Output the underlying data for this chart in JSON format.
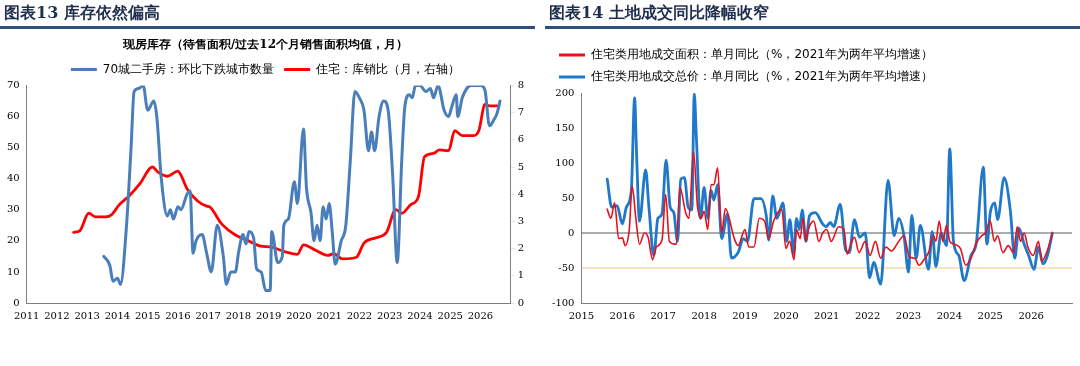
{
  "chart_data": [
    {
      "type": "line",
      "title": "图表13 库存依然偏高",
      "legend_title": "现房库存（待售面积/过去12个月销售面积均值，月）",
      "xlim": [
        2011,
        2027
      ],
      "xticks": [
        2011,
        2012,
        2013,
        2014,
        2015,
        2016,
        2017,
        2018,
        2019,
        2020,
        2021,
        2022,
        2023,
        2024,
        2025,
        2026
      ],
      "ylim": [
        0,
        70
      ],
      "yticks": [
        0,
        10,
        20,
        30,
        40,
        50,
        60,
        70
      ],
      "y2lim": [
        0,
        8
      ],
      "y2ticks": [
        0,
        1,
        2,
        3,
        4,
        5,
        6,
        7,
        8
      ],
      "grid": false,
      "legend": "top",
      "marker": "none",
      "line_style": "solid",
      "series": [
        {
          "name": "70城二手房：环比下跌城市数量",
          "color": "#4a7ebb",
          "x": [
            2013.55,
            2013.75,
            2013.85,
            2014.0,
            2014.1,
            2014.3,
            2014.45,
            2014.55,
            2014.7,
            2014.85,
            2015.0,
            2015.2,
            2015.3,
            2015.45,
            2015.65,
            2015.75,
            2015.85,
            2016.0,
            2016.1,
            2016.3,
            2016.4,
            2016.5,
            2016.6,
            2016.8,
            2016.95,
            2017.1,
            2017.3,
            2017.5,
            2017.6,
            2017.75,
            2017.9,
            2018.0,
            2018.15,
            2018.25,
            2018.35,
            2018.5,
            2018.6,
            2018.75,
            2018.9,
            2019.05,
            2019.1,
            2019.3,
            2019.45,
            2019.5,
            2019.65,
            2019.85,
            2019.95,
            2020.15,
            2020.25,
            2020.4,
            2020.5,
            2020.6,
            2020.7,
            2020.8,
            2020.9,
            2021.0,
            2021.1,
            2021.2,
            2021.4,
            2021.55,
            2021.7,
            2021.85,
            2022.0,
            2022.15,
            2022.3,
            2022.4,
            2022.5,
            2022.65,
            2022.8,
            2022.95,
            2023.1,
            2023.25,
            2023.4,
            2023.5,
            2023.65,
            2023.75,
            2023.85,
            2024.0,
            2024.2,
            2024.35,
            2024.45,
            2024.6,
            2024.8,
            2024.95,
            2025.05,
            2025.2,
            2025.25,
            2025.4,
            2025.55,
            2025.7,
            2026.0,
            2026.15,
            2026.3,
            2026.45,
            2026.55,
            2026.65
          ],
          "values": [
            15,
            12,
            7,
            8,
            6,
            25,
            50,
            68,
            69,
            70,
            62,
            65,
            60,
            40,
            28,
            30,
            27,
            31,
            30,
            35,
            36,
            16,
            20,
            22,
            16,
            10,
            25,
            15,
            6,
            10,
            10,
            16,
            22,
            19,
            23,
            21,
            11,
            10,
            4,
            4,
            23,
            13,
            15,
            25,
            27,
            39,
            32,
            56,
            37,
            29,
            20,
            25,
            20,
            31,
            27,
            32,
            23,
            12.5,
            20,
            25,
            46,
            68,
            66,
            62,
            49,
            55,
            49,
            60,
            65,
            62,
            41,
            13,
            46,
            63,
            67,
            66,
            70,
            70,
            68,
            69,
            66,
            70,
            62,
            60,
            63,
            67,
            60,
            66,
            69,
            70,
            70,
            68.5,
            57,
            59,
            61,
            65
          ]
        },
        {
          "name": "住宅：库销比（月，右轴）",
          "color": "#ff0000",
          "axis": "y2",
          "x": [
            2012.55,
            2012.75,
            2013.05,
            2013.27,
            2013.6,
            2013.8,
            2014.05,
            2014.4,
            2014.75,
            2015.15,
            2015.35,
            2015.65,
            2016.0,
            2016.1,
            2016.3,
            2016.65,
            2016.95,
            2017.05,
            2017.45,
            2017.9,
            2018.25,
            2018.7,
            2019.1,
            2019.55,
            2019.95,
            2020.15,
            2020.55,
            2020.95,
            2021.15,
            2021.45,
            2021.9,
            2022.15,
            2022.55,
            2022.9,
            2023.2,
            2023.4,
            2023.7,
            2023.95,
            2024.15,
            2024.45,
            2024.65,
            2024.95,
            2025.15,
            2025.4,
            2025.75,
            2025.95,
            2026.15,
            2026.3,
            2026.6
          ],
          "values": [
            2.6,
            2.65,
            3.3,
            3.17,
            3.17,
            3.24,
            3.6,
            3.95,
            4.4,
            5.0,
            4.8,
            4.66,
            4.85,
            4.7,
            4.2,
            3.75,
            3.56,
            3.53,
            2.9,
            2.5,
            2.33,
            2.1,
            2.05,
            1.88,
            1.79,
            2.14,
            1.94,
            1.75,
            1.81,
            1.62,
            1.68,
            2.2,
            2.4,
            2.6,
            3.43,
            3.3,
            3.62,
            3.9,
            5.37,
            5.5,
            5.63,
            5.6,
            6.34,
            6.15,
            6.15,
            6.34,
            7.3,
            7.25,
            7.25
          ]
        }
      ]
    },
    {
      "type": "line",
      "title": "图表14 土地成交同比降幅收窄",
      "xlim": [
        2015,
        2027
      ],
      "xticks": [
        2015,
        2016,
        2017,
        2018,
        2019,
        2020,
        2021,
        2022,
        2023,
        2024,
        2025,
        2026
      ],
      "ylim": [
        -100,
        200
      ],
      "yticks": [
        -100,
        -50,
        0,
        50,
        100,
        150,
        200
      ],
      "grid": false,
      "legend": "top left",
      "marker": "none",
      "line_style": "solid",
      "ref_lines": [
        {
          "axis": "y",
          "value": 0,
          "color": "#595959"
        },
        {
          "axis": "y",
          "value": -50,
          "color": "#f5c77e"
        }
      ],
      "series": [
        {
          "name": "住宅类用地成交面积：单月同比（%，2021年为两年平均增速）",
          "color": "#e8101d",
          "x": [
            2015.63,
            2015.72,
            2015.81,
            2015.91,
            2016.0,
            2016.07,
            2016.17,
            2016.24,
            2016.33,
            2016.42,
            2016.54,
            2016.63,
            2016.74,
            2016.83,
            2016.97,
            2017.06,
            2017.15,
            2017.32,
            2017.41,
            2017.55,
            2017.63,
            2017.74,
            2017.84,
            2017.93,
            2018.0,
            2018.09,
            2018.17,
            2018.24,
            2018.33,
            2018.43,
            2018.52,
            2018.74,
            2018.83,
            2019.0,
            2019.09,
            2019.22,
            2019.35,
            2019.48,
            2019.58,
            2019.7,
            2019.9,
            2020.0,
            2020.09,
            2020.2,
            2020.26,
            2020.35,
            2020.42,
            2020.49,
            2020.55,
            2020.68,
            2020.81,
            2020.9,
            2021.0,
            2021.11,
            2021.29,
            2021.42,
            2021.5,
            2021.59,
            2021.68,
            2021.79,
            2021.94,
            2022.06,
            2022.19,
            2022.32,
            2022.45,
            2022.58,
            2022.76,
            2022.89,
            2023.02,
            2023.15,
            2023.26,
            2023.38,
            2023.49,
            2023.61,
            2023.67,
            2023.75,
            2023.84,
            2023.93,
            2024.01,
            2024.12,
            2024.27,
            2024.4,
            2024.53,
            2024.66,
            2024.79,
            2024.88,
            2025.0,
            2025.1,
            2025.18,
            2025.31,
            2025.44,
            2025.57,
            2025.66,
            2025.74,
            2025.83,
            2025.92,
            2026.05,
            2026.18,
            2026.26,
            2026.38,
            2026.52
          ],
          "values": [
            34,
            21,
            43,
            -8,
            -7,
            -18,
            5,
            67,
            21,
            -16,
            0,
            -6,
            -38,
            -20,
            -10,
            55,
            -12,
            -16,
            65,
            29,
            21,
            116,
            37,
            21,
            31,
            5,
            69,
            69,
            93,
            0,
            35,
            -8,
            -18,
            5,
            -20,
            -20,
            21,
            17,
            -8,
            17,
            34,
            -22,
            -12,
            -38,
            5,
            -8,
            21,
            -12,
            5,
            17,
            -12,
            0,
            5,
            -12,
            9,
            5,
            -30,
            -16,
            -6,
            -28,
            -12,
            -32,
            -12,
            -36,
            -20,
            -26,
            -12,
            -4,
            -34,
            -36,
            -46,
            -38,
            -28,
            -4,
            -12,
            17,
            -12,
            11,
            -12,
            -16,
            -22,
            -46,
            -36,
            -14,
            -4,
            0,
            17,
            -12,
            -4,
            -28,
            -18,
            -28,
            9,
            -12,
            0,
            -20,
            -32,
            -12,
            -40,
            -28,
            0
          ]
        },
        {
          "name": "住宅类用地成交总价：单月同比（%，2021年为两年平均增速）",
          "color": "#1f78c8",
          "x": [
            2015.63,
            2015.74,
            2015.87,
            2016.0,
            2016.1,
            2016.22,
            2016.3,
            2016.35,
            2016.42,
            2016.57,
            2016.65,
            2016.77,
            2016.87,
            2016.97,
            2017.07,
            2017.17,
            2017.26,
            2017.35,
            2017.43,
            2017.52,
            2017.61,
            2017.7,
            2017.76,
            2017.81,
            2017.91,
            2018.0,
            2018.09,
            2018.17,
            2018.24,
            2018.33,
            2018.43,
            2018.57,
            2018.67,
            2018.83,
            2018.96,
            2019.06,
            2019.22,
            2019.39,
            2019.52,
            2019.58,
            2019.68,
            2019.78,
            2019.93,
            2020.02,
            2020.1,
            2020.19,
            2020.26,
            2020.33,
            2020.4,
            2020.49,
            2020.58,
            2020.72,
            2020.9,
            2020.98,
            2021.09,
            2021.17,
            2021.33,
            2021.46,
            2021.55,
            2021.68,
            2021.8,
            2021.94,
            2022.05,
            2022.15,
            2022.32,
            2022.5,
            2022.65,
            2022.76,
            2022.89,
            2023.0,
            2023.08,
            2023.19,
            2023.29,
            2023.49,
            2023.58,
            2023.67,
            2023.8,
            2023.93,
            2024.01,
            2024.1,
            2024.23,
            2024.36,
            2024.53,
            2024.66,
            2024.83,
            2024.92,
            2025.0,
            2025.11,
            2025.18,
            2025.34,
            2025.49,
            2025.6,
            2025.7,
            2025.83,
            2025.94,
            2026.07,
            2026.18,
            2026.29,
            2026.39,
            2026.52
          ],
          "values": [
            77,
            37,
            39,
            13,
            37,
            61,
            193,
            110,
            17,
            90,
            37,
            -32,
            21,
            27,
            104,
            37,
            29,
            -12,
            77,
            79,
            37,
            33,
            199,
            138,
            21,
            65,
            21,
            61,
            47,
            69,
            -8,
            27,
            -36,
            -28,
            -8,
            -12,
            49,
            49,
            25,
            -10,
            53,
            21,
            43,
            -12,
            19,
            -30,
            21,
            5,
            33,
            -12,
            25,
            29,
            13,
            9,
            15,
            9,
            41,
            -24,
            -28,
            19,
            -6,
            0,
            -64,
            -42,
            -73,
            75,
            -4,
            21,
            -4,
            -56,
            25,
            -36,
            11,
            -52,
            2,
            -48,
            0,
            -18,
            120,
            -12,
            -32,
            -68,
            -32,
            -14,
            94,
            -16,
            29,
            43,
            19,
            79,
            33,
            -36,
            7,
            -16,
            -32,
            -52,
            -20,
            -44,
            -34,
            0
          ]
        }
      ]
    }
  ]
}
